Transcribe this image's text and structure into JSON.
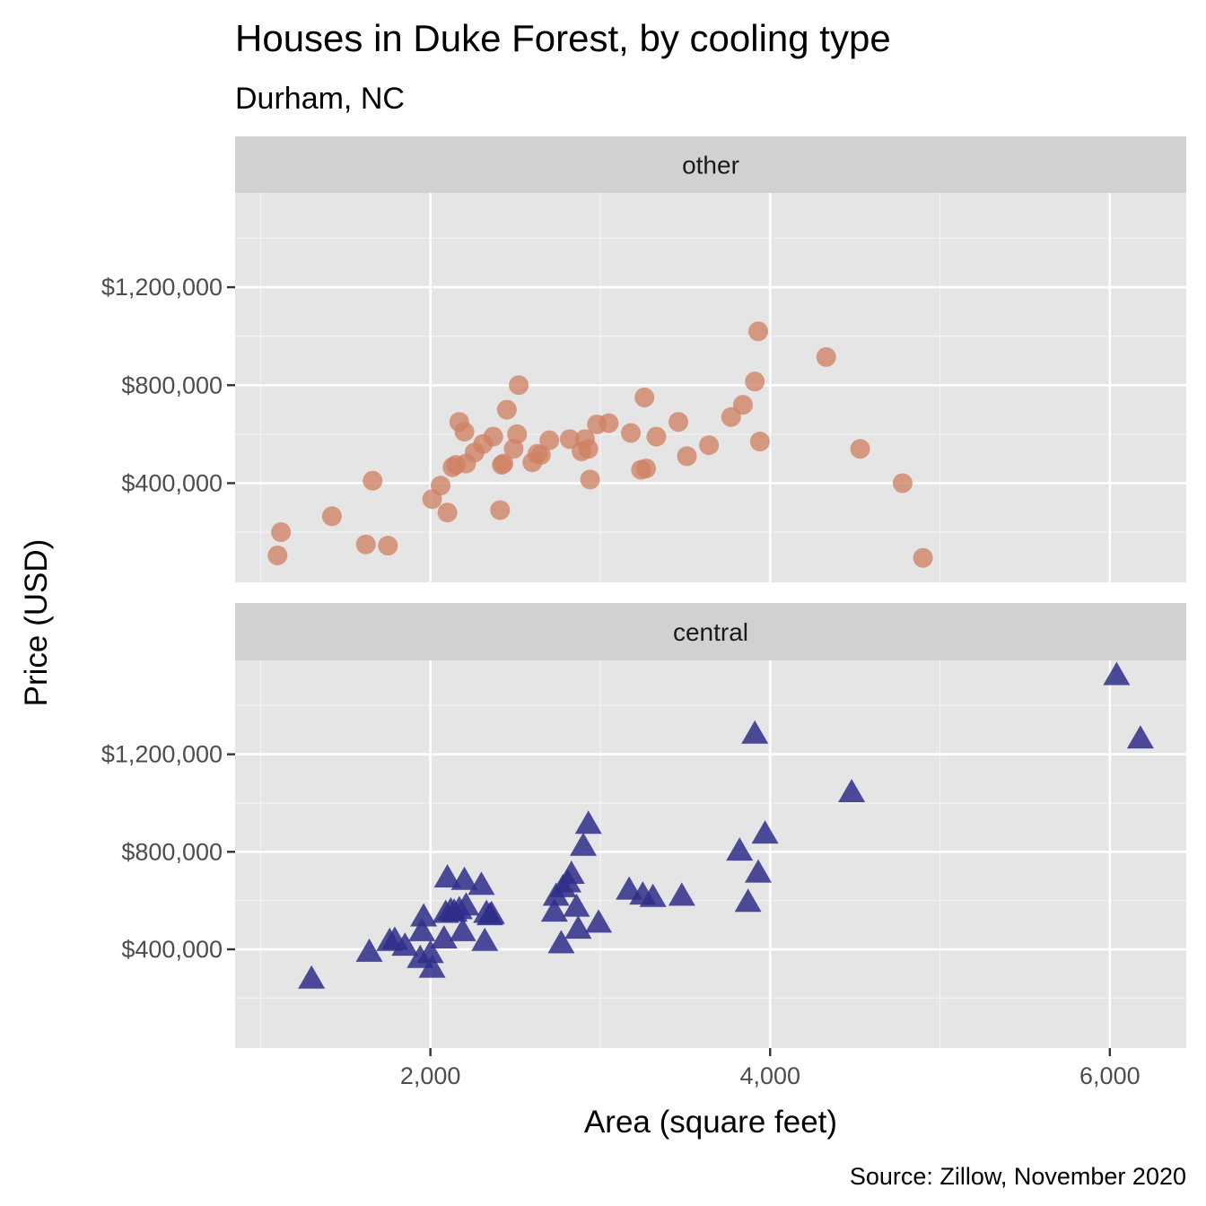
{
  "chart_data": {
    "type": "scatter",
    "title": "Houses in Duke Forest, by cooling type",
    "subtitle": "Durham, NC",
    "xlabel": "Area (square feet)",
    "ylabel": "Price (USD)",
    "caption": "Source: Zillow, November 2020",
    "xlim": [
      850,
      6450
    ],
    "ylim": [
      -5000,
      1585000
    ],
    "x_ticks": [
      2000,
      4000,
      6000
    ],
    "x_tick_labels": [
      "2,000",
      "4,000",
      "6,000"
    ],
    "y_ticks": [
      400000,
      800000,
      1200000
    ],
    "y_tick_labels": [
      "$400,000",
      "$800,000",
      "$1,200,000"
    ],
    "grid": true,
    "legend": "none",
    "facets": [
      {
        "label": "other",
        "shape": "circle",
        "color": "#d08163",
        "points": [
          [
            1100,
            105000
          ],
          [
            1120,
            200000
          ],
          [
            1420,
            265000
          ],
          [
            1620,
            150000
          ],
          [
            1660,
            410000
          ],
          [
            1750,
            145000
          ],
          [
            2010,
            335000
          ],
          [
            2060,
            390000
          ],
          [
            2100,
            280000
          ],
          [
            2130,
            465000
          ],
          [
            2150,
            475000
          ],
          [
            2170,
            650000
          ],
          [
            2200,
            610000
          ],
          [
            2210,
            480000
          ],
          [
            2260,
            525000
          ],
          [
            2310,
            560000
          ],
          [
            2370,
            590000
          ],
          [
            2410,
            290000
          ],
          [
            2420,
            475000
          ],
          [
            2430,
            480000
          ],
          [
            2450,
            700000
          ],
          [
            2490,
            540000
          ],
          [
            2510,
            600000
          ],
          [
            2520,
            800000
          ],
          [
            2600,
            485000
          ],
          [
            2630,
            520000
          ],
          [
            2650,
            515000
          ],
          [
            2700,
            575000
          ],
          [
            2820,
            580000
          ],
          [
            2890,
            530000
          ],
          [
            2910,
            580000
          ],
          [
            2930,
            540000
          ],
          [
            2940,
            415000
          ],
          [
            2980,
            640000
          ],
          [
            3050,
            645000
          ],
          [
            3180,
            605000
          ],
          [
            3240,
            455000
          ],
          [
            3260,
            750000
          ],
          [
            3270,
            460000
          ],
          [
            3330,
            590000
          ],
          [
            3460,
            650000
          ],
          [
            3510,
            510000
          ],
          [
            3640,
            555000
          ],
          [
            3770,
            670000
          ],
          [
            3840,
            720000
          ],
          [
            3910,
            815000
          ],
          [
            3930,
            1020000
          ],
          [
            3940,
            570000
          ],
          [
            4330,
            915000
          ],
          [
            4530,
            540000
          ],
          [
            4780,
            400000
          ],
          [
            4900,
            95000
          ]
        ]
      },
      {
        "label": "central",
        "shape": "triangle",
        "color": "#2e2e8a",
        "points": [
          [
            1300,
            275000
          ],
          [
            1640,
            385000
          ],
          [
            1760,
            430000
          ],
          [
            1790,
            435000
          ],
          [
            1850,
            410000
          ],
          [
            1940,
            360000
          ],
          [
            1950,
            470000
          ],
          [
            1960,
            530000
          ],
          [
            2000,
            380000
          ],
          [
            2010,
            320000
          ],
          [
            2080,
            440000
          ],
          [
            2090,
            545000
          ],
          [
            2100,
            690000
          ],
          [
            2120,
            555000
          ],
          [
            2140,
            550000
          ],
          [
            2170,
            560000
          ],
          [
            2190,
            470000
          ],
          [
            2200,
            680000
          ],
          [
            2210,
            575000
          ],
          [
            2300,
            660000
          ],
          [
            2320,
            430000
          ],
          [
            2330,
            545000
          ],
          [
            2350,
            535000
          ],
          [
            2360,
            540000
          ],
          [
            2730,
            550000
          ],
          [
            2740,
            615000
          ],
          [
            2770,
            420000
          ],
          [
            2780,
            650000
          ],
          [
            2810,
            670000
          ],
          [
            2830,
            705000
          ],
          [
            2860,
            570000
          ],
          [
            2870,
            480000
          ],
          [
            2900,
            820000
          ],
          [
            2930,
            910000
          ],
          [
            2990,
            505000
          ],
          [
            3170,
            640000
          ],
          [
            3250,
            620000
          ],
          [
            3310,
            610000
          ],
          [
            3480,
            615000
          ],
          [
            3820,
            800000
          ],
          [
            3870,
            590000
          ],
          [
            3910,
            1280000
          ],
          [
            3930,
            710000
          ],
          [
            3970,
            870000
          ],
          [
            4480,
            1040000
          ],
          [
            6040,
            1520000
          ],
          [
            6180,
            1260000
          ]
        ]
      }
    ]
  }
}
